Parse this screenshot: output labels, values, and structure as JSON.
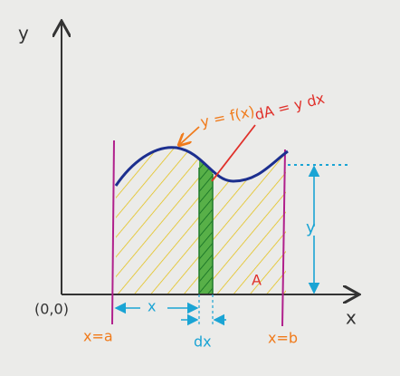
{
  "axes": {
    "y_label": "y",
    "x_label": "x",
    "origin": "(0,0)"
  },
  "labels": {
    "curve": "y = f(x)",
    "strip": "dA = y dx",
    "area": "A",
    "distance_x": "x",
    "width_dx": "dx",
    "height_y": "y",
    "left_bound": "x=a",
    "right_bound": "x=b"
  }
}
